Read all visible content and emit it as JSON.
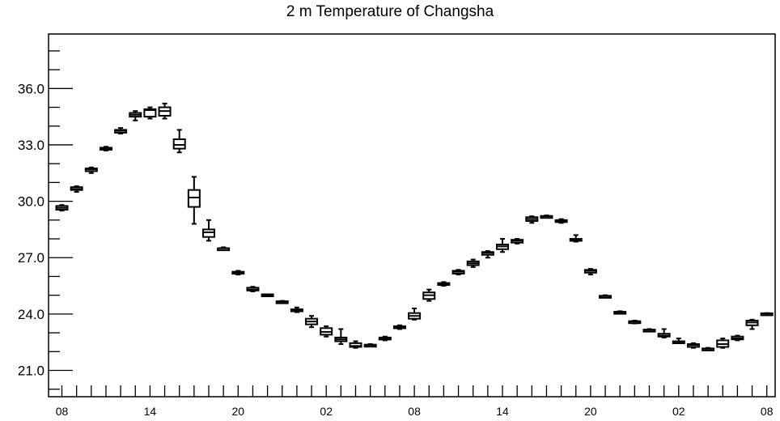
{
  "chart_data": {
    "type": "box",
    "title": "2 m Temperature of Changsha",
    "xlabel": "",
    "ylabel": "",
    "ylim": [
      19.6,
      38.9
    ],
    "y_ticks": [
      21.0,
      24.0,
      27.0,
      30.0,
      33.0,
      36.0
    ],
    "y_tick_labels": [
      "21.0",
      "24.0",
      "27.0",
      "30.0",
      "33.0",
      "36.0"
    ],
    "x_tick_labels": [
      "08",
      "14",
      "20",
      "02",
      "08",
      "14",
      "20",
      "02",
      "08"
    ],
    "x_tick_steps": [
      0,
      6,
      12,
      18,
      24,
      30,
      36,
      42,
      48
    ],
    "step_hours": 1,
    "grid": false,
    "legend": "none",
    "colors": {
      "box": "#000000",
      "background": "#ffffff"
    },
    "boxes": [
      {
        "step": 0,
        "min": 29.5,
        "q1": 29.55,
        "median": 29.65,
        "q3": 29.75,
        "max": 29.8
      },
      {
        "step": 1,
        "min": 30.5,
        "q1": 30.6,
        "median": 30.65,
        "q3": 30.75,
        "max": 30.8
      },
      {
        "step": 2,
        "min": 31.5,
        "q1": 31.6,
        "median": 31.7,
        "q3": 31.75,
        "max": 31.8
      },
      {
        "step": 3,
        "min": 32.7,
        "q1": 32.75,
        "median": 32.8,
        "q3": 32.85,
        "max": 32.9
      },
      {
        "step": 4,
        "min": 33.6,
        "q1": 33.65,
        "median": 33.75,
        "q3": 33.8,
        "max": 33.9
      },
      {
        "step": 5,
        "min": 34.3,
        "q1": 34.5,
        "median": 34.6,
        "q3": 34.7,
        "max": 34.8
      },
      {
        "step": 6,
        "min": 34.4,
        "q1": 34.5,
        "median": 34.85,
        "q3": 34.9,
        "max": 35.0
      },
      {
        "step": 7,
        "min": 34.4,
        "q1": 34.55,
        "median": 34.8,
        "q3": 35.0,
        "max": 35.2
      },
      {
        "step": 8,
        "min": 32.6,
        "q1": 32.8,
        "median": 33.0,
        "q3": 33.3,
        "max": 33.8
      },
      {
        "step": 9,
        "min": 28.8,
        "q1": 29.7,
        "median": 30.2,
        "q3": 30.6,
        "max": 31.3
      },
      {
        "step": 10,
        "min": 27.9,
        "q1": 28.1,
        "median": 28.35,
        "q3": 28.5,
        "max": 29.0
      },
      {
        "step": 11,
        "min": 27.4,
        "q1": 27.45,
        "median": 27.5,
        "q3": 27.5,
        "max": 27.55
      },
      {
        "step": 12,
        "min": 26.1,
        "q1": 26.15,
        "median": 26.2,
        "q3": 26.25,
        "max": 26.3
      },
      {
        "step": 13,
        "min": 25.2,
        "q1": 25.25,
        "median": 25.3,
        "q3": 25.4,
        "max": 25.45
      },
      {
        "step": 14,
        "min": 24.95,
        "q1": 25.0,
        "median": 25.0,
        "q3": 25.05,
        "max": 25.05
      },
      {
        "step": 15,
        "min": 24.6,
        "q1": 24.62,
        "median": 24.65,
        "q3": 24.68,
        "max": 24.7
      },
      {
        "step": 16,
        "min": 24.1,
        "q1": 24.15,
        "median": 24.2,
        "q3": 24.25,
        "max": 24.35
      },
      {
        "step": 17,
        "min": 23.3,
        "q1": 23.45,
        "median": 23.6,
        "q3": 23.75,
        "max": 23.9
      },
      {
        "step": 18,
        "min": 22.8,
        "q1": 22.9,
        "median": 23.05,
        "q3": 23.25,
        "max": 23.35
      },
      {
        "step": 19,
        "min": 22.4,
        "q1": 22.55,
        "median": 22.65,
        "q3": 22.75,
        "max": 23.2
      },
      {
        "step": 20,
        "min": 22.2,
        "q1": 22.25,
        "median": 22.3,
        "q3": 22.45,
        "max": 22.55
      },
      {
        "step": 21,
        "min": 22.3,
        "q1": 22.32,
        "median": 22.35,
        "q3": 22.37,
        "max": 22.4
      },
      {
        "step": 22,
        "min": 22.6,
        "q1": 22.65,
        "median": 22.7,
        "q3": 22.75,
        "max": 22.8
      },
      {
        "step": 23,
        "min": 23.2,
        "q1": 23.25,
        "median": 23.3,
        "q3": 23.35,
        "max": 23.4
      },
      {
        "step": 24,
        "min": 23.7,
        "q1": 23.75,
        "median": 23.9,
        "q3": 24.05,
        "max": 24.3
      },
      {
        "step": 25,
        "min": 24.7,
        "q1": 24.8,
        "median": 25.0,
        "q3": 25.15,
        "max": 25.3
      },
      {
        "step": 26,
        "min": 25.5,
        "q1": 25.55,
        "median": 25.6,
        "q3": 25.65,
        "max": 25.7
      },
      {
        "step": 27,
        "min": 26.1,
        "q1": 26.15,
        "median": 26.25,
        "q3": 26.3,
        "max": 26.35
      },
      {
        "step": 28,
        "min": 26.5,
        "q1": 26.6,
        "median": 26.7,
        "q3": 26.8,
        "max": 26.9
      },
      {
        "step": 29,
        "min": 27.0,
        "q1": 27.15,
        "median": 27.25,
        "q3": 27.3,
        "max": 27.35
      },
      {
        "step": 30,
        "min": 27.3,
        "q1": 27.45,
        "median": 27.6,
        "q3": 27.7,
        "max": 28.0
      },
      {
        "step": 31,
        "min": 27.75,
        "q1": 27.8,
        "median": 27.9,
        "q3": 27.95,
        "max": 28.0
      },
      {
        "step": 32,
        "min": 28.85,
        "q1": 28.95,
        "median": 29.05,
        "q3": 29.15,
        "max": 29.2
      },
      {
        "step": 33,
        "min": 29.15,
        "q1": 29.18,
        "median": 29.2,
        "q3": 29.22,
        "max": 29.25
      },
      {
        "step": 34,
        "min": 28.85,
        "q1": 28.9,
        "median": 28.95,
        "q3": 29.0,
        "max": 29.05
      },
      {
        "step": 35,
        "min": 27.85,
        "q1": 27.9,
        "median": 27.95,
        "q3": 28.0,
        "max": 28.2
      },
      {
        "step": 36,
        "min": 26.1,
        "q1": 26.2,
        "median": 26.3,
        "q3": 26.35,
        "max": 26.4
      },
      {
        "step": 37,
        "min": 24.9,
        "q1": 24.92,
        "median": 24.95,
        "q3": 24.97,
        "max": 25.0
      },
      {
        "step": 38,
        "min": 24.05,
        "q1": 24.07,
        "median": 24.1,
        "q3": 24.12,
        "max": 24.15
      },
      {
        "step": 39,
        "min": 23.5,
        "q1": 23.55,
        "median": 23.6,
        "q3": 23.62,
        "max": 23.65
      },
      {
        "step": 40,
        "min": 23.1,
        "q1": 23.12,
        "median": 23.15,
        "q3": 23.17,
        "max": 23.2
      },
      {
        "step": 41,
        "min": 22.75,
        "q1": 22.8,
        "median": 22.85,
        "q3": 22.95,
        "max": 23.2
      },
      {
        "step": 42,
        "min": 22.45,
        "q1": 22.48,
        "median": 22.5,
        "q3": 22.55,
        "max": 22.7
      },
      {
        "step": 43,
        "min": 22.2,
        "q1": 22.25,
        "median": 22.35,
        "q3": 22.4,
        "max": 22.45
      },
      {
        "step": 44,
        "min": 22.1,
        "q1": 22.12,
        "median": 22.15,
        "q3": 22.17,
        "max": 22.2
      },
      {
        "step": 45,
        "min": 22.2,
        "q1": 22.25,
        "median": 22.4,
        "q3": 22.6,
        "max": 22.7
      },
      {
        "step": 46,
        "min": 22.6,
        "q1": 22.65,
        "median": 22.7,
        "q3": 22.8,
        "max": 22.85
      },
      {
        "step": 47,
        "min": 23.2,
        "q1": 23.4,
        "median": 23.55,
        "q3": 23.65,
        "max": 23.7
      },
      {
        "step": 48,
        "min": 23.95,
        "q1": 24.0,
        "median": 24.02,
        "q3": 24.04,
        "max": 24.05
      }
    ]
  }
}
